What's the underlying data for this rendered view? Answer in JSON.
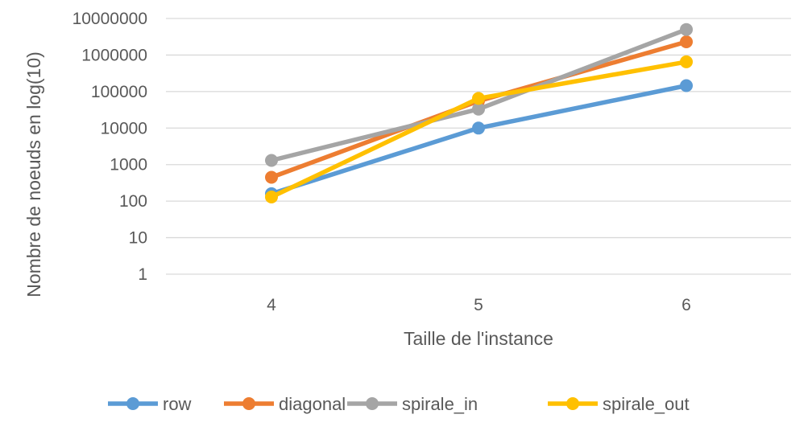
{
  "chart_data": {
    "type": "line",
    "title": "",
    "xlabel": "Taille de l'instance",
    "ylabel": "Nombre de noeuds en log(10)",
    "y_scale": "log10",
    "x": [
      "4",
      "5",
      "6"
    ],
    "y_ticks": [
      "1",
      "10",
      "100",
      "1000",
      "10000",
      "100000",
      "1000000",
      "10000000"
    ],
    "ylim": [
      1,
      10000000
    ],
    "grid": true,
    "legend_position": "bottom",
    "series": [
      {
        "name": "row",
        "color": "#5B9BD5",
        "values": [
          160,
          10000,
          145000
        ]
      },
      {
        "name": "diagonal",
        "color": "#ED7D31",
        "values": [
          450,
          55000,
          2300000
        ]
      },
      {
        "name": "spirale_in",
        "color": "#A5A5A5",
        "values": [
          1300,
          33000,
          5000000
        ]
      },
      {
        "name": "spirale_out",
        "color": "#FFC000",
        "values": [
          130,
          65000,
          650000
        ]
      }
    ]
  }
}
